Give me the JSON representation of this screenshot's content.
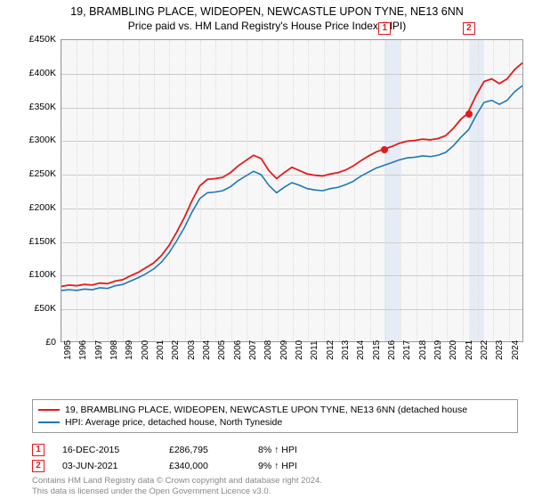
{
  "title": {
    "line1": "19, BRAMBLING PLACE, WIDEOPEN, NEWCASTLE UPON TYNE, NE13 6NN",
    "line2": "Price paid vs. HM Land Registry's House Price Index (HPI)"
  },
  "chart": {
    "type": "line",
    "background_color": "#f7f7f7",
    "plot_border_color": "#999999",
    "grid_color": "#cccccc",
    "highlight_color": "#e6ecf5",
    "x": {
      "min": 1995,
      "max": 2025,
      "ticks": [
        1995,
        1996,
        1997,
        1998,
        1999,
        2000,
        2001,
        2002,
        2003,
        2004,
        2005,
        2006,
        2007,
        2008,
        2009,
        2010,
        2011,
        2012,
        2013,
        2014,
        2015,
        2016,
        2017,
        2018,
        2019,
        2020,
        2021,
        2022,
        2023,
        2024
      ],
      "label_fontsize": 10
    },
    "y": {
      "min": 0,
      "max": 450000,
      "ticks": [
        0,
        50000,
        100000,
        150000,
        200000,
        250000,
        300000,
        350000,
        400000,
        450000
      ],
      "tick_labels": [
        "£0",
        "£50K",
        "£100K",
        "£150K",
        "£200K",
        "£250K",
        "£300K",
        "£350K",
        "£400K",
        "£450K"
      ],
      "label_fontsize": 10.5
    },
    "highlight_bands": [
      {
        "from": 2015.96,
        "to": 2016.96
      },
      {
        "from": 2021.42,
        "to": 2022.42
      }
    ],
    "series": [
      {
        "name": "property",
        "label": "19, BRAMBLING PLACE, WIDEOPEN, NEWCASTLE UPON TYNE, NE13 6NN (detached house",
        "color": "#e31a1c",
        "line_width": 1.8,
        "points": [
          [
            1995.0,
            82000
          ],
          [
            1995.5,
            84000
          ],
          [
            1996.0,
            83000
          ],
          [
            1996.5,
            85000
          ],
          [
            1997.0,
            84000
          ],
          [
            1997.5,
            87000
          ],
          [
            1998.0,
            86000
          ],
          [
            1998.5,
            90000
          ],
          [
            1999.0,
            92000
          ],
          [
            1999.5,
            98000
          ],
          [
            2000.0,
            103000
          ],
          [
            2000.5,
            110000
          ],
          [
            2001.0,
            117000
          ],
          [
            2001.5,
            128000
          ],
          [
            2002.0,
            143000
          ],
          [
            2002.5,
            163000
          ],
          [
            2003.0,
            185000
          ],
          [
            2003.5,
            210000
          ],
          [
            2004.0,
            232000
          ],
          [
            2004.5,
            242000
          ],
          [
            2005.0,
            243000
          ],
          [
            2005.5,
            245000
          ],
          [
            2006.0,
            252000
          ],
          [
            2006.5,
            262000
          ],
          [
            2007.0,
            270000
          ],
          [
            2007.5,
            278000
          ],
          [
            2008.0,
            273000
          ],
          [
            2008.5,
            255000
          ],
          [
            2009.0,
            243000
          ],
          [
            2009.5,
            252000
          ],
          [
            2010.0,
            260000
          ],
          [
            2010.5,
            255000
          ],
          [
            2011.0,
            250000
          ],
          [
            2011.5,
            248000
          ],
          [
            2012.0,
            247000
          ],
          [
            2012.5,
            250000
          ],
          [
            2013.0,
            252000
          ],
          [
            2013.5,
            256000
          ],
          [
            2014.0,
            262000
          ],
          [
            2014.5,
            270000
          ],
          [
            2015.0,
            277000
          ],
          [
            2015.5,
            283000
          ],
          [
            2015.96,
            286795
          ],
          [
            2016.5,
            291000
          ],
          [
            2017.0,
            296000
          ],
          [
            2017.5,
            299000
          ],
          [
            2018.0,
            300000
          ],
          [
            2018.5,
            302000
          ],
          [
            2019.0,
            301000
          ],
          [
            2019.5,
            303000
          ],
          [
            2020.0,
            307000
          ],
          [
            2020.5,
            318000
          ],
          [
            2021.0,
            332000
          ],
          [
            2021.42,
            340000
          ],
          [
            2022.0,
            368000
          ],
          [
            2022.5,
            388000
          ],
          [
            2023.0,
            392000
          ],
          [
            2023.5,
            385000
          ],
          [
            2024.0,
            392000
          ],
          [
            2024.5,
            406000
          ],
          [
            2025.0,
            416000
          ]
        ]
      },
      {
        "name": "hpi",
        "label": "HPI: Average price, detached house, North Tyneside",
        "color": "#1f78b4",
        "line_width": 1.6,
        "points": [
          [
            1995.0,
            76000
          ],
          [
            1995.5,
            77000
          ],
          [
            1996.0,
            76000
          ],
          [
            1996.5,
            78000
          ],
          [
            1997.0,
            77000
          ],
          [
            1997.5,
            80000
          ],
          [
            1998.0,
            79000
          ],
          [
            1998.5,
            83000
          ],
          [
            1999.0,
            85000
          ],
          [
            1999.5,
            90000
          ],
          [
            2000.0,
            95000
          ],
          [
            2000.5,
            101000
          ],
          [
            2001.0,
            108000
          ],
          [
            2001.5,
            118000
          ],
          [
            2002.0,
            132000
          ],
          [
            2002.5,
            150000
          ],
          [
            2003.0,
            170000
          ],
          [
            2003.5,
            193000
          ],
          [
            2004.0,
            213000
          ],
          [
            2004.5,
            222000
          ],
          [
            2005.0,
            223000
          ],
          [
            2005.5,
            225000
          ],
          [
            2006.0,
            231000
          ],
          [
            2006.5,
            240000
          ],
          [
            2007.0,
            247000
          ],
          [
            2007.5,
            254000
          ],
          [
            2008.0,
            249000
          ],
          [
            2008.5,
            233000
          ],
          [
            2009.0,
            222000
          ],
          [
            2009.5,
            230000
          ],
          [
            2010.0,
            237000
          ],
          [
            2010.5,
            233000
          ],
          [
            2011.0,
            228000
          ],
          [
            2011.5,
            226000
          ],
          [
            2012.0,
            225000
          ],
          [
            2012.5,
            228000
          ],
          [
            2013.0,
            230000
          ],
          [
            2013.5,
            234000
          ],
          [
            2014.0,
            239000
          ],
          [
            2014.5,
            247000
          ],
          [
            2015.0,
            253000
          ],
          [
            2015.5,
            259000
          ],
          [
            2016.0,
            263000
          ],
          [
            2016.5,
            267000
          ],
          [
            2017.0,
            271000
          ],
          [
            2017.5,
            274000
          ],
          [
            2018.0,
            275000
          ],
          [
            2018.5,
            277000
          ],
          [
            2019.0,
            276000
          ],
          [
            2019.5,
            278000
          ],
          [
            2020.0,
            282000
          ],
          [
            2020.5,
            292000
          ],
          [
            2021.0,
            305000
          ],
          [
            2021.5,
            316000
          ],
          [
            2022.0,
            338000
          ],
          [
            2022.5,
            357000
          ],
          [
            2023.0,
            360000
          ],
          [
            2023.5,
            354000
          ],
          [
            2024.0,
            360000
          ],
          [
            2024.5,
            373000
          ],
          [
            2025.0,
            382000
          ]
        ]
      }
    ],
    "sale_markers": [
      {
        "id": "1",
        "x": 2015.96,
        "y": 286795,
        "color": "#e31a1c"
      },
      {
        "id": "2",
        "x": 2021.42,
        "y": 340000,
        "color": "#e31a1c"
      }
    ]
  },
  "legend": {
    "rows": [
      {
        "color": "#e31a1c",
        "label": "19, BRAMBLING PLACE, WIDEOPEN, NEWCASTLE UPON TYNE, NE13 6NN (detached house"
      },
      {
        "color": "#1f78b4",
        "label": "HPI: Average price, detached house, North Tyneside"
      }
    ]
  },
  "sales": [
    {
      "id": "1",
      "date": "16-DEC-2015",
      "price": "£286,795",
      "hpi_delta": "8% ↑ HPI"
    },
    {
      "id": "2",
      "date": "03-JUN-2021",
      "price": "£340,000",
      "hpi_delta": "9% ↑ HPI"
    }
  ],
  "footer": {
    "line1": "Contains HM Land Registry data © Crown copyright and database right 2024.",
    "line2": "This data is licensed under the Open Government Licence v3.0."
  }
}
